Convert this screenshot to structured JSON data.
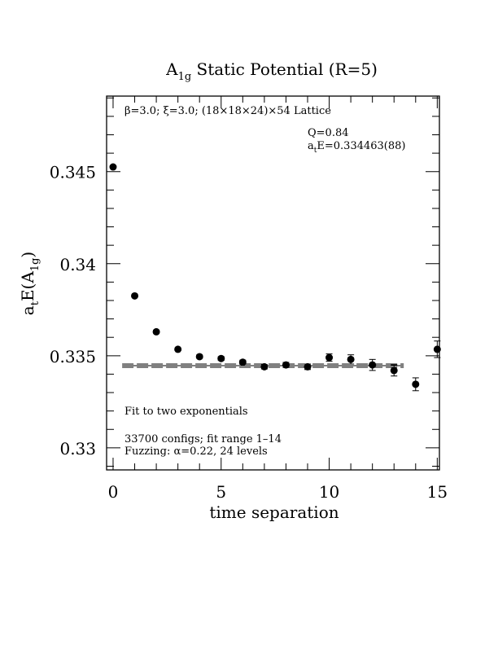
{
  "chart_data": {
    "type": "scatter",
    "title": {
      "main": "A",
      "sub": "1g",
      "rest": " Static Potential (R=5)"
    },
    "xlabel": "time separation",
    "ylabel": {
      "a": "a",
      "t": "t",
      "mid": "E(A",
      "sub": "1g",
      "close": ")"
    },
    "xlim": [
      -0.3,
      15.1
    ],
    "ylim": [
      0.3288,
      0.3491
    ],
    "x_ticks": [
      0,
      5,
      10,
      15
    ],
    "x_tick_labels": [
      "0",
      "5",
      "10",
      "15"
    ],
    "y_ticks": [
      0.33,
      0.335,
      0.34,
      0.345
    ],
    "y_tick_labels": [
      "0.33",
      "0.335",
      "0.34",
      "0.345"
    ],
    "annotations": {
      "lattice": "β=3.0; ξ=3.0; (18×18×24)×54 Lattice",
      "q": "Q=0.84",
      "energy_prefix": "a",
      "energy_sub": "t",
      "energy_value": "E=0.334463(88)",
      "fit": "Fit to two exponentials",
      "configs": "33700 configs; fit range 1–14",
      "fuzzing": "Fuzzing: α=0.22, 24 levels"
    },
    "series": [
      {
        "x": [
          0,
          1,
          2,
          3,
          4,
          5,
          6,
          7,
          8,
          9,
          10,
          11,
          12,
          13,
          14,
          15
        ],
        "y": [
          0.34525,
          0.33825,
          0.3363,
          0.33535,
          0.33495,
          0.33485,
          0.33465,
          0.3344,
          0.3345,
          0.3344,
          0.3349,
          0.3348,
          0.3345,
          0.3342,
          0.33345,
          0.33535
        ],
        "yerr": [
          6e-05,
          7e-05,
          8e-05,
          7e-05,
          9e-05,
          0.0001,
          0.00011,
          0.00012,
          0.00014,
          0.00015,
          0.0002,
          0.00025,
          0.0003,
          0.0003,
          0.00035,
          0.00045
        ]
      }
    ],
    "fit": {
      "value": 0.334463,
      "error": 8.8e-05,
      "x_range": [
        1,
        14
      ]
    }
  }
}
